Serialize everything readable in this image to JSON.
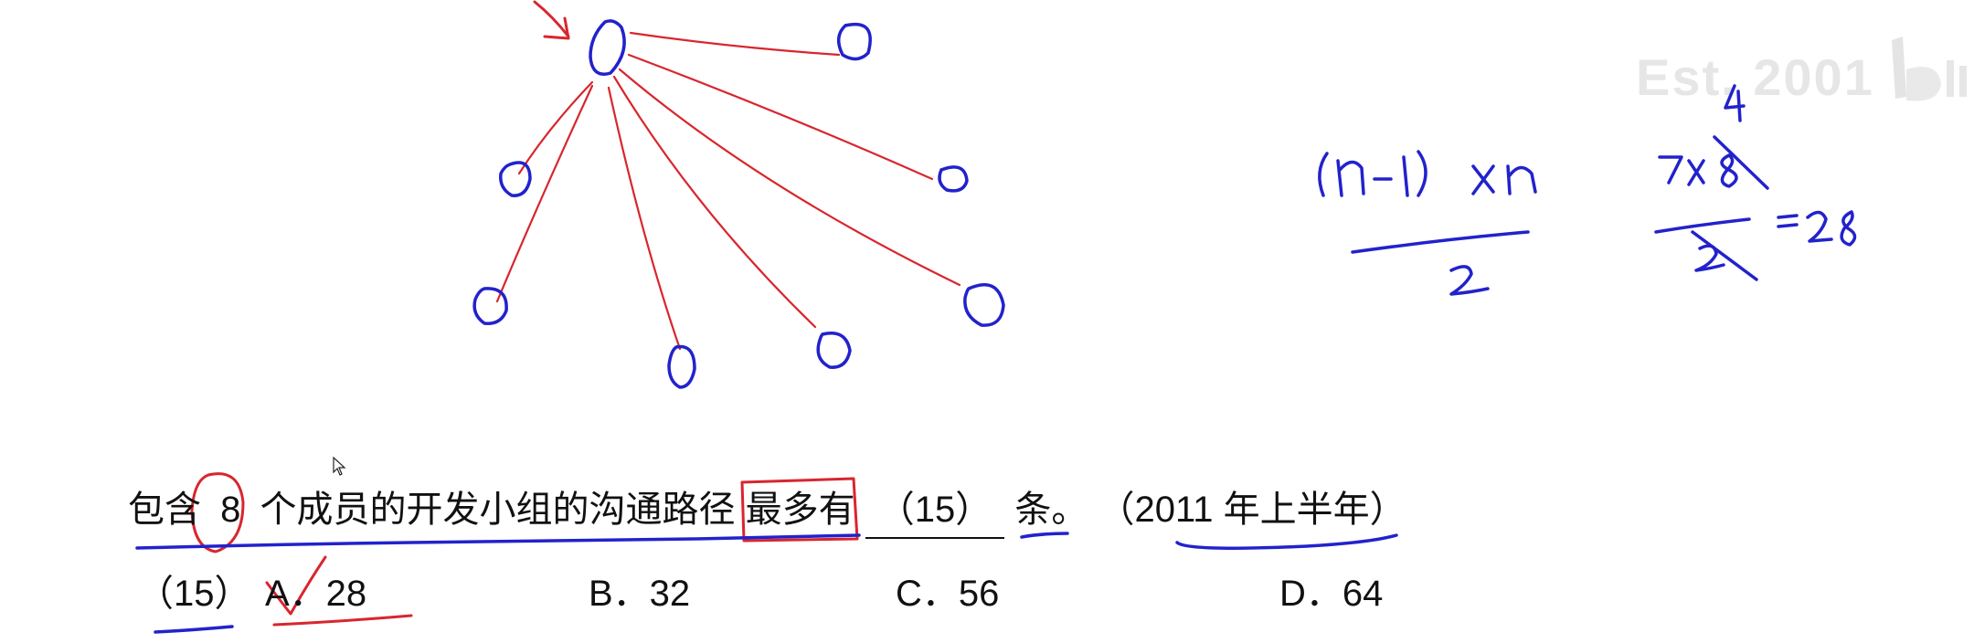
{
  "question": {
    "prefix": "包含",
    "number": "8",
    "middle": "个成员的开发小组的沟通路径",
    "boxed": "最多有",
    "blank": "（15）",
    "suffix": "条。",
    "source": "（2011 年上半年）"
  },
  "options": {
    "item_number": "（15）",
    "a": "A．28",
    "b": "B．32",
    "c": "C．56",
    "d": "D．64"
  },
  "handwriting": {
    "formula_numerator": "(n-1) x n",
    "formula_denominator": "2",
    "calc_top": "4",
    "calc_numerator": "7x8",
    "calc_denominator": "2",
    "calc_result": "=28"
  },
  "watermark": {
    "text": "Est. 2001",
    "logo": "bilibili-logo"
  },
  "colors": {
    "ink_blue": "#2222cc",
    "ink_red": "#d8262e",
    "text": "#111111"
  }
}
